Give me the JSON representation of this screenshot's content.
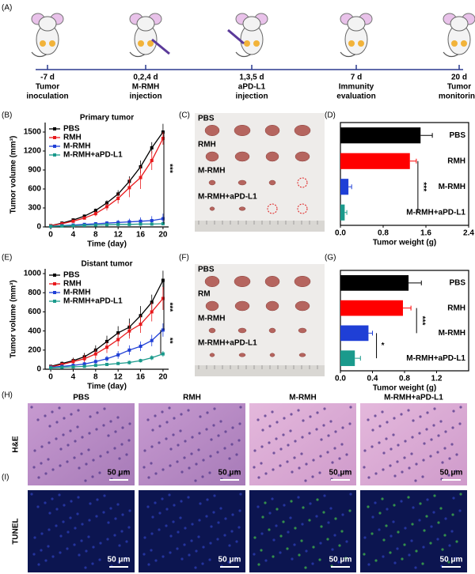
{
  "panel_labels": [
    "(A)",
    "(B)",
    "(C)",
    "(D)",
    "(E)",
    "(F)",
    "(G)",
    "(H)",
    "(I)"
  ],
  "timeline": [
    {
      "day": "-7 d",
      "line1": "Tumor",
      "line2": "inoculation"
    },
    {
      "day": "0,2,4 d",
      "line1": "M-RMH",
      "line2": "injection"
    },
    {
      "day": "1,3,5 d",
      "line1": "aPD-L1",
      "line2": "injection"
    },
    {
      "day": "7 d",
      "line1": "Immunity",
      "line2": "evaluation"
    },
    {
      "day": "20 d",
      "line1": "Tumor",
      "line2": "monitoring"
    }
  ],
  "chart_data": [
    {
      "type": "line",
      "title": "Primary tumor",
      "x_label": "Time (day)",
      "y_label": "Tumor volume (mm³)",
      "x": [
        0,
        2,
        4,
        6,
        8,
        10,
        12,
        14,
        16,
        18,
        20
      ],
      "xlim": [
        -1,
        21
      ],
      "xticks": [
        0,
        4,
        8,
        12,
        16,
        20
      ],
      "ylim": [
        0,
        1650
      ],
      "yticks": [
        0,
        300,
        600,
        900,
        1200,
        1500
      ],
      "series": [
        {
          "name": "PBS",
          "color": "#000000",
          "values": [
            20,
            60,
            110,
            170,
            260,
            380,
            520,
            720,
            950,
            1250,
            1500
          ],
          "errors": [
            5,
            10,
            20,
            25,
            30,
            40,
            60,
            80,
            100,
            90,
            130
          ]
        },
        {
          "name": "RMH",
          "color": "#e8191c",
          "values": [
            20,
            50,
            90,
            140,
            210,
            320,
            450,
            620,
            780,
            1050,
            1400
          ],
          "errors": [
            5,
            10,
            15,
            20,
            40,
            60,
            80,
            150,
            180,
            150,
            100
          ]
        },
        {
          "name": "M-RMH",
          "color": "#1f3fd6",
          "values": [
            10,
            20,
            30,
            40,
            50,
            60,
            70,
            80,
            90,
            100,
            130
          ],
          "errors": [
            5,
            10,
            15,
            20,
            25,
            30,
            40,
            50,
            60,
            70,
            80
          ]
        },
        {
          "name": "M-RMH+aPD-L1",
          "color": "#1a9a8c",
          "values": [
            10,
            15,
            20,
            25,
            30,
            35,
            40,
            40,
            45,
            45,
            50
          ],
          "errors": [
            3,
            5,
            8,
            10,
            10,
            12,
            12,
            15,
            15,
            15,
            20
          ]
        }
      ],
      "annotations": [
        "***"
      ]
    },
    {
      "type": "hbar",
      "x_label": "Tumor weight (g)",
      "categories": [
        "PBS",
        "RMH",
        "M-RMH",
        "M-RMH+aPD-L1"
      ],
      "values": [
        1.5,
        1.3,
        0.15,
        0.08
      ],
      "errors": [
        0.22,
        0.12,
        0.06,
        0.04
      ],
      "colors": [
        "#000000",
        "#ff0000",
        "#1f3fd6",
        "#1a9a8c"
      ],
      "xlim": [
        0,
        2.4
      ],
      "xticks": [
        {
          "value": 0,
          "label": "0.0"
        },
        0.8,
        1.6,
        2.4
      ],
      "annotations": [
        "***"
      ]
    },
    {
      "type": "line",
      "title": "Distant tumor",
      "x_label": "Time (day)",
      "y_label": "Tumor volume (mm³)",
      "x": [
        0,
        2,
        4,
        6,
        8,
        10,
        12,
        14,
        16,
        18,
        20
      ],
      "xlim": [
        -1,
        21
      ],
      "xticks": [
        0,
        4,
        8,
        12,
        16,
        20
      ],
      "ylim": [
        0,
        1050
      ],
      "yticks": [
        0,
        200,
        400,
        600,
        800,
        1000
      ],
      "series": [
        {
          "name": "PBS",
          "color": "#000000",
          "values": [
            30,
            60,
            90,
            130,
            200,
            290,
            380,
            440,
            560,
            700,
            930
          ],
          "errors": [
            10,
            20,
            30,
            40,
            50,
            60,
            70,
            90,
            100,
            80,
            100
          ]
        },
        {
          "name": "RMH",
          "color": "#e8191c",
          "values": [
            25,
            50,
            80,
            110,
            160,
            230,
            310,
            400,
            470,
            600,
            740
          ],
          "errors": [
            10,
            20,
            30,
            40,
            50,
            60,
            70,
            80,
            90,
            100,
            120
          ]
        },
        {
          "name": "M-RMH",
          "color": "#1f3fd6",
          "values": [
            20,
            30,
            40,
            55,
            80,
            110,
            150,
            200,
            240,
            300,
            410
          ],
          "errors": [
            5,
            10,
            15,
            20,
            25,
            30,
            40,
            50,
            50,
            60,
            70
          ]
        },
        {
          "name": "M-RMH+aPD-L1",
          "color": "#1a9a8c",
          "values": [
            15,
            20,
            25,
            30,
            40,
            50,
            60,
            70,
            90,
            120,
            160
          ],
          "errors": [
            5,
            5,
            10,
            10,
            10,
            15,
            15,
            20,
            20,
            25,
            30
          ]
        }
      ],
      "annotations": [
        "***",
        "**"
      ]
    },
    {
      "type": "hbar",
      "x_label": "Tumor weight (g)",
      "categories": [
        "PBS",
        "RMH",
        "M-RMH",
        "M-RMH+aPD-L1"
      ],
      "values": [
        0.85,
        0.78,
        0.35,
        0.18
      ],
      "errors": [
        0.16,
        0.1,
        0.05,
        0.07
      ],
      "colors": [
        "#000000",
        "#ff0000",
        "#1f3fd6",
        "#1a9a8c"
      ],
      "xlim": [
        0,
        1.6
      ],
      "xticks": [
        {
          "value": 0,
          "label": "0.0"
        },
        0.4,
        0.8,
        1.2
      ],
      "annotations": [
        "***",
        "*"
      ]
    }
  ],
  "photos": [
    {
      "labels": [
        "PBS",
        "RMH",
        "M-RMH",
        "M-RMH+aPD-L1"
      ]
    },
    {
      "labels": [
        "PBS",
        "RM",
        "M-RMH",
        "M-RMH+aPD-L1"
      ]
    }
  ],
  "histology": {
    "columns": [
      "PBS",
      "RMH",
      "M-RMH",
      "M-RMH+aPD-L1"
    ],
    "rows": [
      "H&E",
      "TUNEL"
    ],
    "scale_bar": "50 μm"
  }
}
